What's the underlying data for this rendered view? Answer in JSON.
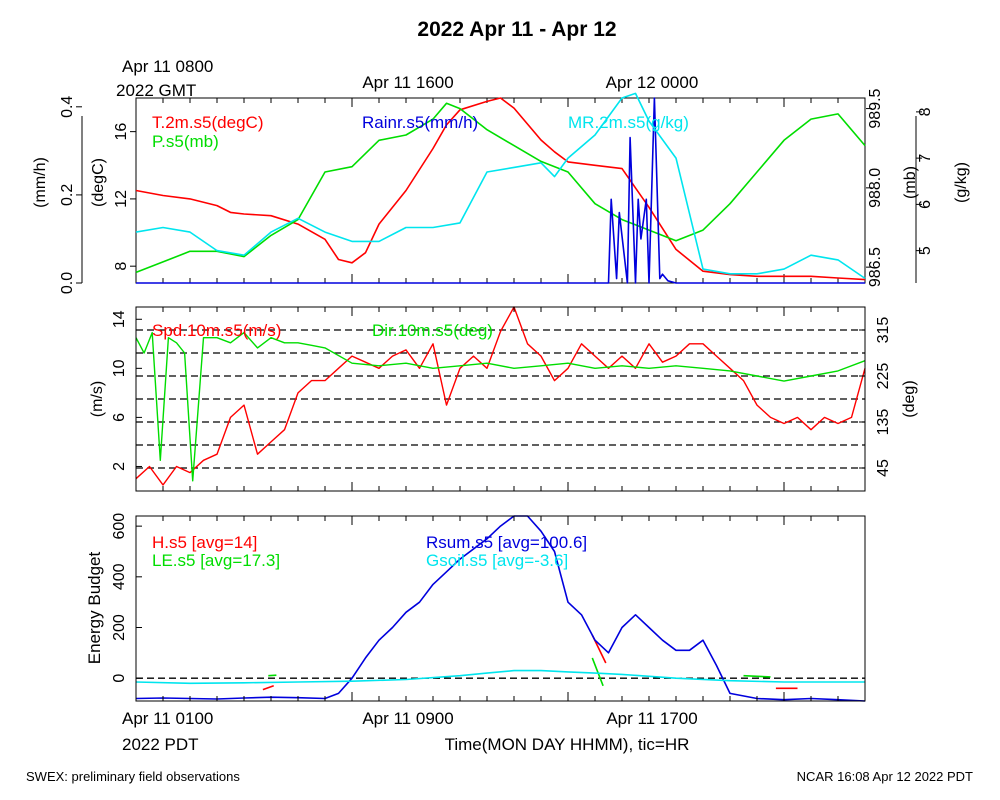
{
  "title": "2022 Apr 11 - Apr 12",
  "top_axis": {
    "start_line1": "Apr 11 0800",
    "start_line2": "2022 GMT",
    "ticks": [
      "Apr 11 1600",
      "Apr 12 0000"
    ]
  },
  "bottom_axis": {
    "start_line1": "Apr 11 0100",
    "start_line2": "2022 PDT",
    "ticks": [
      "Apr 11 0900",
      "Apr 11 1700"
    ],
    "xlabel": "Time(MON DAY HHMM), tic=HR"
  },
  "footer": {
    "left": "SWEX: preliminary field observations",
    "right": "NCAR 16:08 Apr 12 2022 PDT"
  },
  "colors": {
    "red": "#ff0000",
    "green": "#00dd00",
    "blue": "#0000dd",
    "cyan": "#00e5ee",
    "black": "#000000"
  },
  "chart_data": [
    {
      "type": "line",
      "panel": "met",
      "x_unit": "hours after Apr 11 0100 PDT",
      "xlim": [
        0,
        27
      ],
      "axes": [
        {
          "label": "(mm/h)",
          "side": "left",
          "range": [
            0,
            0.42
          ],
          "ticks": [
            "0.0",
            "0.2",
            "0.4"
          ],
          "tick_values": [
            0,
            0.2,
            0.4
          ]
        },
        {
          "label": "(degC)",
          "side": "left",
          "range": [
            7,
            18
          ],
          "ticks": [
            "8",
            "12",
            "16"
          ],
          "tick_values": [
            8,
            12,
            16
          ]
        },
        {
          "label": "(mb)",
          "side": "right",
          "range": [
            986.2,
            989.7
          ],
          "ticks": [
            "986.5",
            "988.0",
            "989.5"
          ],
          "tick_values": [
            986.5,
            988.0,
            989.5
          ]
        },
        {
          "label": "(g/kg)",
          "side": "right",
          "range": [
            4.3,
            8.3
          ],
          "ticks": [
            "5",
            "6",
            "7",
            "8"
          ],
          "tick_values": [
            5,
            6,
            7,
            8
          ]
        }
      ],
      "series": [
        {
          "name": "T.2m.s5(degC)",
          "color": "#ff0000",
          "axis": "(degC)",
          "x": [
            0,
            1,
            2,
            3,
            3.5,
            4,
            5,
            6,
            7,
            7.5,
            8,
            8.5,
            9,
            10,
            11,
            11.5,
            12,
            13,
            13.5,
            14,
            15,
            15.5,
            16,
            17,
            18,
            19,
            20,
            21,
            22,
            23,
            24,
            25,
            26,
            27
          ],
          "y": [
            12.5,
            12.2,
            12.0,
            11.6,
            11.2,
            11.1,
            11.0,
            10.5,
            9.6,
            8.4,
            8.2,
            8.8,
            10.5,
            12.5,
            15.0,
            16.4,
            17.3,
            17.8,
            18.0,
            17.4,
            15.5,
            14.8,
            14.2,
            14.0,
            13.8,
            11.5,
            9.0,
            7.7,
            7.5,
            7.4,
            7.4,
            7.4,
            7.3,
            7.2
          ]
        },
        {
          "name": "P.s5(mb)",
          "color": "#00dd00",
          "axis": "(mb)",
          "x": [
            0,
            1,
            2,
            3,
            4,
            5,
            6,
            7,
            8,
            9,
            10,
            11,
            11.5,
            12,
            13,
            14,
            15,
            16,
            17,
            18,
            19,
            20,
            21,
            22,
            23,
            24,
            25,
            26,
            27
          ],
          "y": [
            986.4,
            986.6,
            986.8,
            986.8,
            986.7,
            987.1,
            987.4,
            988.3,
            988.4,
            988.9,
            989.0,
            989.3,
            989.6,
            989.5,
            989.1,
            988.8,
            988.5,
            988.3,
            987.7,
            987.4,
            987.2,
            987.0,
            987.2,
            987.7,
            988.3,
            988.9,
            989.3,
            989.4,
            988.8
          ]
        },
        {
          "name": "Rainr.s5(mm/h)",
          "color": "#0000dd",
          "axis": "(mm/h)",
          "x": [
            0,
            17.2,
            17.5,
            17.6,
            17.8,
            17.9,
            18.2,
            18.3,
            18.5,
            18.6,
            18.7,
            18.9,
            19.0,
            19.2,
            19.4,
            19.5,
            19.7,
            20.0,
            27
          ],
          "y": [
            0,
            0,
            0,
            0.19,
            0.01,
            0.16,
            0,
            0.33,
            0,
            0.19,
            0.1,
            0.19,
            0,
            0.42,
            0.01,
            0.02,
            0.005,
            0,
            0
          ]
        },
        {
          "name": "MR.2m.s5(g/kg)",
          "color": "#00e5ee",
          "axis": "(g/kg)",
          "x": [
            0,
            1,
            2,
            3,
            4,
            5,
            6,
            7,
            8,
            9,
            10,
            11,
            12,
            13,
            14,
            15,
            15.5,
            16,
            17,
            18,
            18.5,
            19,
            20,
            21,
            22,
            23,
            24,
            25,
            26,
            27
          ],
          "y": [
            5.4,
            5.5,
            5.4,
            5.0,
            4.9,
            5.4,
            5.7,
            5.4,
            5.2,
            5.2,
            5.5,
            5.5,
            5.6,
            6.7,
            6.8,
            6.9,
            6.6,
            7.0,
            7.5,
            8.3,
            8.4,
            7.8,
            7.0,
            4.6,
            4.5,
            4.5,
            4.6,
            4.9,
            4.8,
            4.4
          ]
        }
      ]
    },
    {
      "type": "line",
      "panel": "wind",
      "x_unit": "hours after Apr 11 0100 PDT",
      "xlim": [
        0,
        27
      ],
      "axes": [
        {
          "label": "(m/s)",
          "side": "left",
          "range": [
            0,
            15
          ],
          "ticks": [
            "2",
            "6",
            "10",
            "14"
          ],
          "tick_values": [
            2,
            6,
            10,
            14
          ]
        },
        {
          "label": "(deg)",
          "side": "right",
          "range": [
            0,
            360
          ],
          "ticks": [
            "45",
            "135",
            "225",
            "315"
          ],
          "tick_values": [
            45,
            135,
            225,
            315
          ]
        }
      ],
      "reference_lines_deg": [
        45,
        90,
        135,
        180,
        225,
        270,
        315
      ],
      "series": [
        {
          "name": "Spd.10m.s5(m/s)",
          "color": "#ff0000",
          "axis": "(m/s)",
          "x": [
            0,
            0.5,
            1,
            1.5,
            2,
            2.5,
            3,
            3.5,
            4,
            4.5,
            5,
            5.5,
            6,
            6.5,
            7,
            7.5,
            8,
            8.5,
            9,
            9.5,
            10,
            10.5,
            11,
            11.5,
            12,
            12.5,
            13,
            13.5,
            14,
            14.5,
            15,
            15.5,
            16,
            16.5,
            17,
            17.5,
            18,
            18.5,
            19,
            19.5,
            20,
            20.5,
            21,
            21.5,
            22,
            22.5,
            23,
            23.5,
            24,
            24.5,
            25,
            25.5,
            26,
            26.5,
            27
          ],
          "y": [
            1,
            2,
            0.5,
            2,
            1.5,
            2.5,
            3,
            6,
            7,
            3,
            4,
            5,
            8,
            9,
            9,
            10,
            11,
            10.5,
            10,
            11,
            11.5,
            10,
            12,
            7,
            10,
            11,
            10,
            13,
            15,
            12,
            11,
            9,
            10,
            12,
            11,
            10,
            11,
            10,
            12,
            10.5,
            11,
            12,
            12,
            11,
            10,
            9,
            7,
            6,
            5.5,
            6,
            5,
            6,
            5.5,
            6,
            10
          ]
        },
        {
          "name": "Dir.10m.s5(deg)",
          "color": "#00dd00",
          "axis": "(deg)",
          "x": [
            0,
            0.3,
            0.6,
            0.9,
            1.2,
            1.5,
            1.8,
            2.1,
            2.5,
            3,
            3.5,
            4,
            4.5,
            5,
            5.5,
            6,
            6.5,
            7,
            8,
            9,
            10,
            11,
            12,
            13,
            14,
            15,
            16,
            17,
            18,
            19,
            20,
            21,
            22,
            23,
            24,
            25,
            26,
            27
          ],
          "y": [
            300,
            270,
            310,
            60,
            300,
            290,
            270,
            20,
            300,
            300,
            290,
            310,
            280,
            300,
            290,
            290,
            285,
            280,
            250,
            245,
            250,
            240,
            245,
            250,
            240,
            245,
            250,
            240,
            245,
            240,
            245,
            240,
            235,
            225,
            215,
            225,
            235,
            255
          ]
        }
      ]
    },
    {
      "type": "line",
      "panel": "energy",
      "x_unit": "hours after Apr 11 0100 PDT",
      "xlim": [
        0,
        27
      ],
      "ylabel": "Energy Budget",
      "ylim": [
        -90,
        640
      ],
      "yticks": [
        "0",
        "200",
        "400",
        "600"
      ],
      "ytick_values": [
        0,
        200,
        400,
        600
      ],
      "series": [
        {
          "name": "H.s5 [avg=14]",
          "color": "#ff0000",
          "segments": [
            {
              "x": [
                4.7,
                5.1
              ],
              "y": [
                -45,
                -30
              ]
            },
            {
              "x": [
                16.9,
                17.4
              ],
              "y": [
                170,
                60
              ]
            },
            {
              "x": [
                23.7,
                24.5
              ],
              "y": [
                -40,
                -40
              ]
            }
          ]
        },
        {
          "name": "LE.s5 [avg=17.3]",
          "color": "#00dd00",
          "segments": [
            {
              "x": [
                4.9,
                5.2
              ],
              "y": [
                10,
                12
              ]
            },
            {
              "x": [
                16.9,
                17.3
              ],
              "y": [
                80,
                -30
              ]
            },
            {
              "x": [
                22.5,
                23.5
              ],
              "y": [
                10,
                5
              ]
            }
          ]
        },
        {
          "name": "Rsum.s5 [avg=100.6]",
          "color": "#0000dd",
          "x": [
            0,
            1,
            2,
            3,
            4,
            5,
            6,
            7,
            7.5,
            8,
            8.5,
            9,
            9.5,
            10,
            10.5,
            11,
            11.5,
            12,
            13,
            13.5,
            14,
            14.5,
            15,
            15.5,
            16,
            16.5,
            17,
            17.5,
            18,
            18.5,
            19,
            19.5,
            20,
            20.5,
            21,
            21.5,
            22,
            23,
            24,
            25,
            26,
            27
          ],
          "y": [
            -80,
            -78,
            -80,
            -82,
            -78,
            -75,
            -77,
            -80,
            -60,
            0,
            80,
            150,
            200,
            260,
            300,
            370,
            420,
            470,
            550,
            600,
            640,
            640,
            580,
            500,
            300,
            250,
            150,
            100,
            200,
            250,
            200,
            150,
            110,
            110,
            150,
            50,
            -60,
            -80,
            -85,
            -80,
            -85,
            -90
          ]
        },
        {
          "name": "Gsoil.s5 [avg=-3.6]",
          "color": "#00e5ee",
          "x": [
            0,
            2,
            4,
            6,
            8,
            10,
            12,
            13,
            14,
            15,
            16,
            17,
            18,
            20,
            22,
            24,
            26,
            27
          ],
          "y": [
            -15,
            -20,
            -18,
            -15,
            -12,
            -5,
            10,
            20,
            30,
            30,
            25,
            20,
            15,
            0,
            -10,
            -15,
            -15,
            -15
          ]
        }
      ]
    }
  ]
}
